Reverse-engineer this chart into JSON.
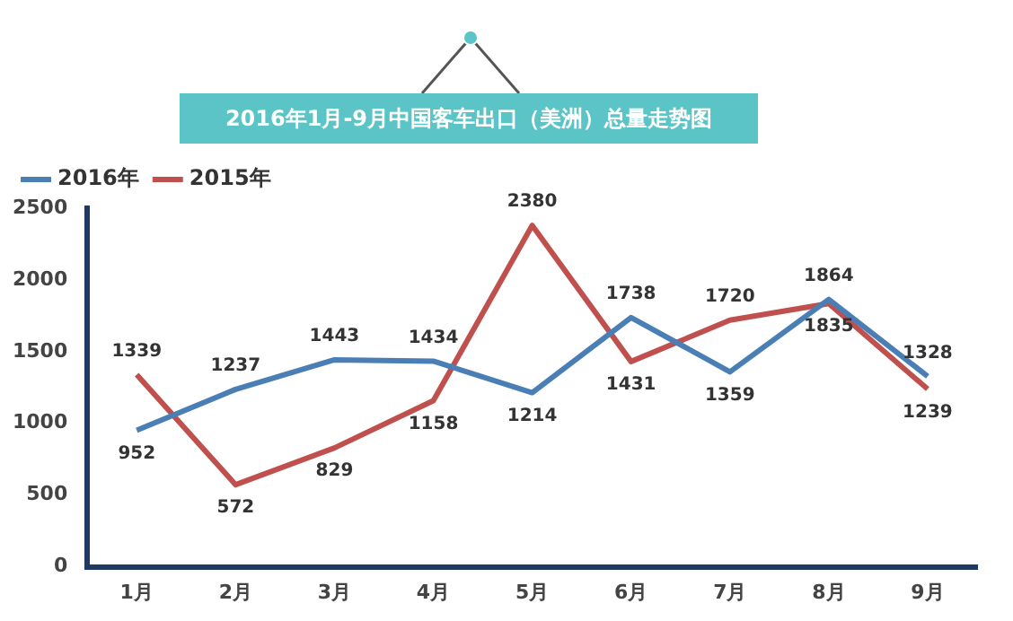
{
  "chart_data": {
    "type": "line",
    "title": "2016年1月-9月中国客车出口（美洲）总量走势图",
    "categories": [
      "1月",
      "2月",
      "3月",
      "4月",
      "5月",
      "6月",
      "7月",
      "8月",
      "9月"
    ],
    "series": [
      {
        "name": "2016年",
        "color": "#4a7fb5",
        "values": [
          952,
          1237,
          1443,
          1434,
          1214,
          1738,
          1359,
          1864,
          1328
        ]
      },
      {
        "name": "2015年",
        "color": "#c0504d",
        "values": [
          1339,
          572,
          829,
          1158,
          2380,
          1431,
          1720,
          1835,
          1239
        ]
      }
    ],
    "ylim": [
      0,
      2500
    ],
    "yticks": [
      0,
      500,
      1000,
      1500,
      2000,
      2500
    ],
    "grid": false,
    "legend": "top left",
    "data_labels": true,
    "marker": "none",
    "line_style": "solid"
  }
}
